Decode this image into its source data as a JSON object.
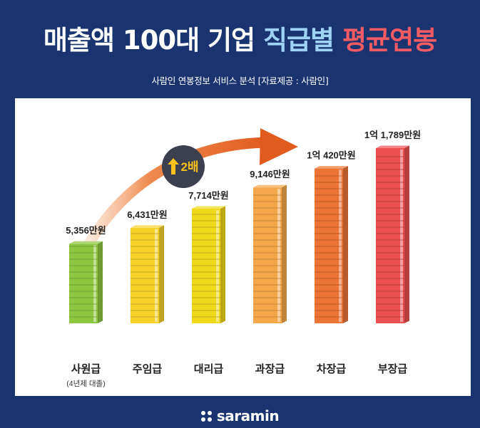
{
  "header": {
    "title_part1": "매출액 100대 기업",
    "title_part2": "직급별",
    "title_part3": "평균연봉",
    "subtitle": "사람인 연봉정보 서비스 분석 [자료제공 : 사람인]"
  },
  "arrow_badge": {
    "label": "2배"
  },
  "footer": {
    "logo_text": "saramin"
  },
  "colors": {
    "background": "#1a3470",
    "title_highlight_blue": "#9fd3f4",
    "title_highlight_red": "#f25a64",
    "badge": "#3b3f4e",
    "badge_text": "#f7c21c",
    "arrow": "#e8672a"
  },
  "chart_data": {
    "type": "bar",
    "categories": [
      "사원급",
      "주임급",
      "대리급",
      "과장급",
      "차장급",
      "부장급"
    ],
    "category_notes": [
      "(4년제 대졸)",
      "",
      "",
      "",
      "",
      ""
    ],
    "values": [
      5356,
      6431,
      7714,
      9146,
      10420,
      11789
    ],
    "value_labels": [
      "5,356만원",
      "6,431만원",
      "7,714만원",
      "9,146만원",
      "1억 420만원",
      "1억 1,789만원"
    ],
    "unit": "만원",
    "bar_colors": [
      "#8cc63f",
      "#f5d12a",
      "#f0d81a",
      "#f5a84a",
      "#ec7434",
      "#ec4f4f"
    ],
    "title": "",
    "xlabel": "",
    "ylabel": "",
    "ylim": [
      0,
      11789
    ]
  }
}
